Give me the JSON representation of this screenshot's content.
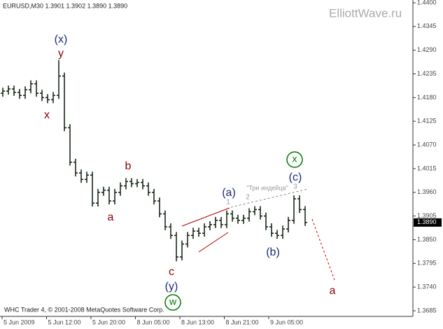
{
  "chart_data": {
    "type": "ohlc",
    "title": "EURUSD,M30  1.3901 1.3902 1.3890 1.3890",
    "watermark": "ElliottWave.ru",
    "footer": "WHC Trader 4, © 2001-2008 MetaQuotes Software Corp.",
    "color": "#0b1a0b",
    "grid": false,
    "ylim": [
      1.3685,
      1.44
    ],
    "yticks": [
      {
        "value": 1.44,
        "label": "1.4400"
      },
      {
        "value": 1.4345,
        "label": "1.4345"
      },
      {
        "value": 1.429,
        "label": "1.4290"
      },
      {
        "value": 1.4235,
        "label": "1.4235"
      },
      {
        "value": 1.418,
        "label": "1.4180"
      },
      {
        "value": 1.4125,
        "label": "1.4125"
      },
      {
        "value": 1.407,
        "label": "1.4070"
      },
      {
        "value": 1.4015,
        "label": "1.4015"
      },
      {
        "value": 1.396,
        "label": "1.3960"
      },
      {
        "value": 1.3905,
        "label": "1.3905"
      },
      {
        "value": 1.385,
        "label": "1.3850"
      },
      {
        "value": 1.3795,
        "label": "1.3795"
      },
      {
        "value": 1.374,
        "label": "1.3740"
      },
      {
        "value": 1.3685,
        "label": "1.3685"
      }
    ],
    "x_labels": [
      "5 Jun 2009",
      "5 Jun 12:00",
      "5 Jun 20:00",
      "8 Jun 05:00",
      "8 Jun 13:00",
      "8 Jun 21:00",
      "9 Jun 05:00"
    ],
    "last_price": {
      "value": 1.389,
      "label": "1.3890"
    },
    "open": [
      1.419,
      1.4195,
      1.42,
      1.4192,
      1.4185,
      1.4198,
      1.4212,
      1.419,
      1.418,
      1.4175,
      1.4185,
      1.423,
      1.411,
      1.403,
      1.4005,
      1.399,
      1.4,
      1.3935,
      1.396,
      1.3965,
      1.394,
      1.396,
      1.3975,
      1.3985,
      1.398,
      1.3983,
      1.3975,
      1.396,
      1.394,
      1.391,
      1.388,
      1.386,
      1.381,
      1.384,
      1.386,
      1.387,
      1.3865,
      1.388,
      1.3885,
      1.3895,
      1.3885,
      1.391,
      1.39,
      1.3895,
      1.39,
      1.3915,
      1.392,
      1.3905,
      1.388,
      1.3865,
      1.386,
      1.3875,
      1.3895,
      1.3945,
      1.392
    ],
    "high": [
      1.4203,
      1.4208,
      1.4208,
      1.42,
      1.4206,
      1.422,
      1.422,
      1.4198,
      1.4188,
      1.4193,
      1.4267,
      1.4238,
      1.4118,
      1.4038,
      1.4013,
      1.4008,
      1.4008,
      1.3968,
      1.3973,
      1.3973,
      1.3968,
      1.3983,
      1.3993,
      1.3993,
      1.3991,
      1.3991,
      1.3983,
      1.3968,
      1.3948,
      1.3918,
      1.3888,
      1.3868,
      1.3848,
      1.3868,
      1.3878,
      1.3878,
      1.3888,
      1.3893,
      1.3903,
      1.3903,
      1.3918,
      1.3918,
      1.3908,
      1.3908,
      1.3923,
      1.3928,
      1.3928,
      1.3913,
      1.3888,
      1.3873,
      1.3883,
      1.3903,
      1.3953,
      1.3953,
      1.3928
    ],
    "low": [
      1.4182,
      1.4187,
      1.4184,
      1.4177,
      1.4177,
      1.419,
      1.4182,
      1.4172,
      1.4167,
      1.4167,
      1.4177,
      1.4102,
      1.4022,
      1.3997,
      1.3982,
      1.3982,
      1.3927,
      1.3927,
      1.3952,
      1.3932,
      1.3932,
      1.3952,
      1.3967,
      1.3972,
      1.3972,
      1.3967,
      1.3952,
      1.3932,
      1.3902,
      1.3872,
      1.3852,
      1.38,
      1.3802,
      1.3832,
      1.3852,
      1.3857,
      1.3857,
      1.3872,
      1.3877,
      1.3877,
      1.3877,
      1.3892,
      1.3887,
      1.3887,
      1.3892,
      1.3907,
      1.3897,
      1.3872,
      1.3857,
      1.3852,
      1.3852,
      1.3867,
      1.3887,
      1.3912,
      1.3882
    ],
    "close": [
      1.4195,
      1.42,
      1.4192,
      1.4185,
      1.4198,
      1.4212,
      1.419,
      1.418,
      1.4175,
      1.4185,
      1.423,
      1.411,
      1.403,
      1.4005,
      1.399,
      1.4,
      1.3935,
      1.396,
      1.3965,
      1.394,
      1.396,
      1.3975,
      1.3985,
      1.398,
      1.3983,
      1.3975,
      1.396,
      1.394,
      1.391,
      1.388,
      1.386,
      1.381,
      1.384,
      1.386,
      1.387,
      1.3865,
      1.388,
      1.3885,
      1.3895,
      1.3885,
      1.391,
      1.39,
      1.3895,
      1.39,
      1.3915,
      1.392,
      1.3905,
      1.388,
      1.3865,
      1.386,
      1.3875,
      1.3895,
      1.3945,
      1.392,
      1.389
    ],
    "annotations": [
      "(x)",
      "y",
      "x",
      "b",
      "a",
      "c",
      "(y)",
      "w",
      "(a)",
      "1",
      "2",
      "\"Три индейца\"",
      "3",
      "x",
      "(c)",
      "(b)",
      "a"
    ]
  }
}
